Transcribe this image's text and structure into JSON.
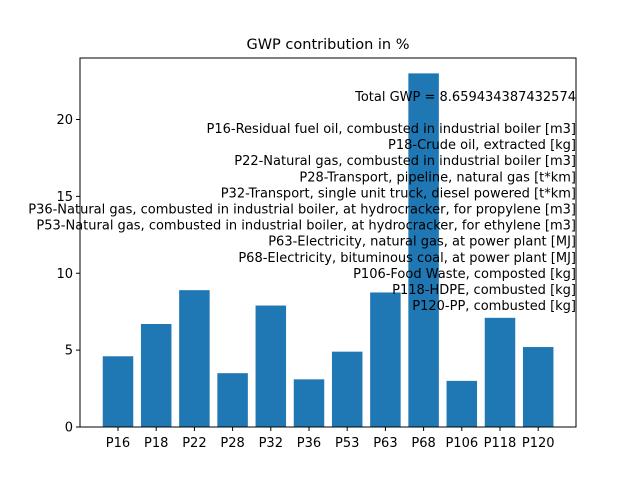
{
  "chart_data": {
    "type": "bar",
    "title": "GWP contribution in %",
    "xlabel": "",
    "ylabel": "",
    "categories": [
      "P16",
      "P18",
      "P22",
      "P28",
      "P32",
      "P36",
      "P53",
      "P63",
      "P68",
      "P106",
      "P118",
      "P120"
    ],
    "values": [
      4.6,
      6.7,
      8.9,
      3.5,
      7.9,
      3.1,
      4.9,
      8.75,
      23.0,
      3.0,
      7.1,
      5.2
    ],
    "ylim": [
      0,
      24
    ],
    "yticks": [
      0,
      5,
      10,
      15,
      20
    ],
    "bar_color": "#1f77b4",
    "grid": false,
    "legend": "none",
    "annotation": {
      "total_label": "Total GWP = 8.659434387432574",
      "lines": [
        "P16-Residual fuel oil, combusted in industrial boiler [m3]",
        "P18-Crude oil, extracted [kg]",
        "P22-Natural gas, combusted in industrial boiler [m3]",
        "P28-Transport, pipeline, natural gas [t*km]",
        "P32-Transport, single unit truck, diesel powered [t*km]",
        "P36-Natural gas, combusted in industrial boiler, at hydrocracker, for propylene [m3]",
        "P53-Natural gas, combusted in industrial boiler, at hydrocracker, for ethylene [m3]",
        "P63-Electricity, natural gas, at power plant [MJ]",
        "P68-Electricity, bituminous coal, at power plant [MJ]",
        "P106-Food Waste, composted [kg]",
        "P118-HDPE, combusted [kg]",
        "P120-PP, combusted [kg]"
      ]
    }
  }
}
